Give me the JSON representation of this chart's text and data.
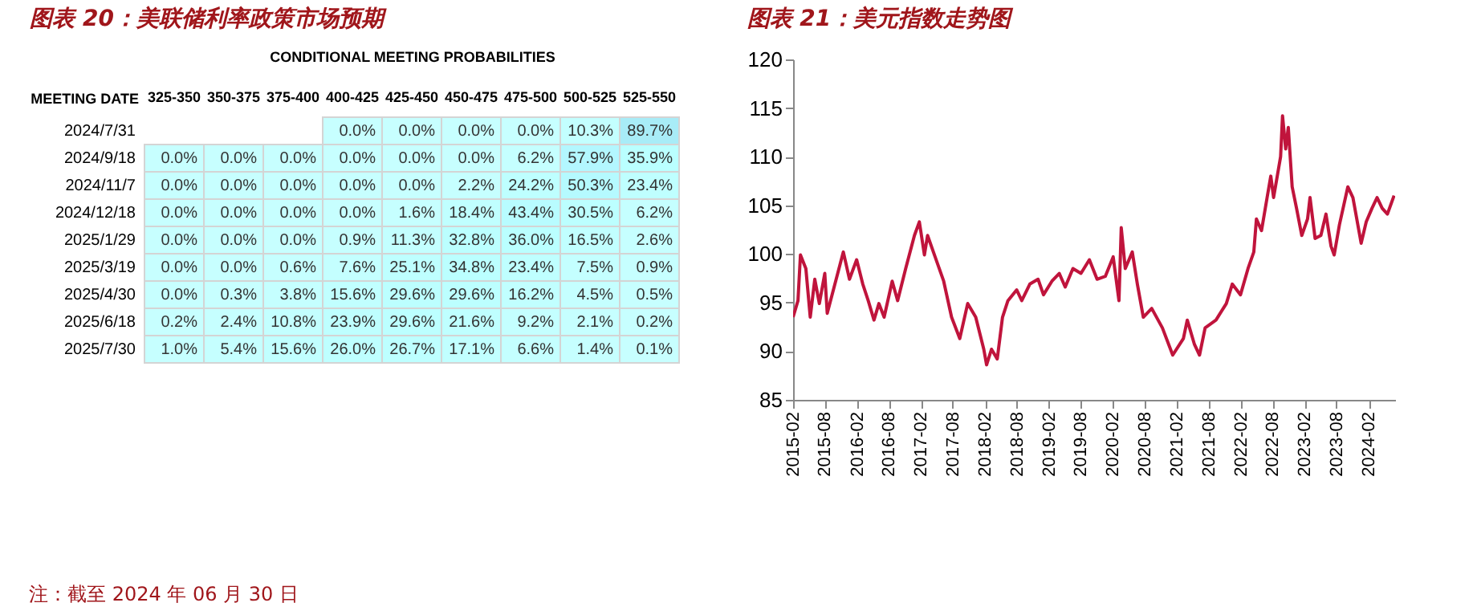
{
  "chart_data": [
    {
      "type": "heatmap",
      "title": "图表 20：美联储利率政策市场预期",
      "xlabel": "CONDITIONAL MEETING PROBABILITIES",
      "ylabel": "MEETING DATE",
      "categories": [
        "325-350",
        "350-375",
        "375-400",
        "400-425",
        "425-450",
        "450-475",
        "475-500",
        "500-525",
        "525-550"
      ],
      "y_categories": [
        "2024/7/31",
        "2024/9/18",
        "2024/11/7",
        "2024/12/18",
        "2025/1/29",
        "2025/3/19",
        "2025/4/30",
        "2025/6/18",
        "2025/7/30"
      ],
      "cells": [
        [
          null,
          null,
          null,
          0.0,
          0.0,
          0.0,
          0.0,
          10.3,
          89.7
        ],
        [
          0.0,
          0.0,
          0.0,
          0.0,
          0.0,
          0.0,
          6.2,
          57.9,
          35.9
        ],
        [
          0.0,
          0.0,
          0.0,
          0.0,
          0.0,
          2.2,
          24.2,
          50.3,
          23.4
        ],
        [
          0.0,
          0.0,
          0.0,
          0.0,
          1.6,
          18.4,
          43.4,
          30.5,
          6.2
        ],
        [
          0.0,
          0.0,
          0.0,
          0.9,
          11.3,
          32.8,
          36.0,
          16.5,
          2.6
        ],
        [
          0.0,
          0.0,
          0.6,
          7.6,
          25.1,
          34.8,
          23.4,
          7.5,
          0.9
        ],
        [
          0.0,
          0.3,
          3.8,
          15.6,
          29.6,
          29.6,
          16.2,
          4.5,
          0.5
        ],
        [
          0.2,
          2.4,
          10.8,
          23.9,
          29.6,
          21.6,
          9.2,
          2.1,
          0.2
        ],
        [
          1.0,
          5.4,
          15.6,
          26.0,
          26.7,
          17.1,
          6.6,
          1.4,
          0.1
        ]
      ],
      "cell_labels": [
        [
          null,
          null,
          null,
          "0.0%",
          "0.0%",
          "0.0%",
          "0.0%",
          "10.3%",
          "89.7%"
        ],
        [
          "0.0%",
          "0.0%",
          "0.0%",
          "0.0%",
          "0.0%",
          "0.0%",
          "6.2%",
          "57.9%",
          "35.9%"
        ],
        [
          "0.0%",
          "0.0%",
          "0.0%",
          "0.0%",
          "0.0%",
          "2.2%",
          "24.2%",
          "50.3%",
          "23.4%"
        ],
        [
          "0.0%",
          "0.0%",
          "0.0%",
          "0.0%",
          "1.6%",
          "18.4%",
          "43.4%",
          "30.5%",
          "6.2%"
        ],
        [
          "0.0%",
          "0.0%",
          "0.0%",
          "0.9%",
          "11.3%",
          "32.8%",
          "36.0%",
          "16.5%",
          "2.6%"
        ],
        [
          "0.0%",
          "0.0%",
          "0.6%",
          "7.6%",
          "25.1%",
          "34.8%",
          "23.4%",
          "7.5%",
          "0.9%"
        ],
        [
          "0.0%",
          "0.3%",
          "3.8%",
          "15.6%",
          "29.6%",
          "29.6%",
          "16.2%",
          "4.5%",
          "0.5%"
        ],
        [
          "0.2%",
          "2.4%",
          "10.8%",
          "23.9%",
          "29.6%",
          "21.6%",
          "9.2%",
          "2.1%",
          "0.2%"
        ],
        [
          "1.0%",
          "5.4%",
          "15.6%",
          "26.0%",
          "26.7%",
          "17.1%",
          "6.6%",
          "1.4%",
          "0.1%"
        ]
      ],
      "annotations": [
        "注：截至 2024 年 06 月 30 日"
      ]
    },
    {
      "type": "line",
      "title": "图表 21：美元指数走势图",
      "xlim": [
        "2015-02",
        "2024-07"
      ],
      "ylim": [
        85,
        120
      ],
      "yticks": [
        85,
        90,
        95,
        100,
        105,
        110,
        115,
        120
      ],
      "xticks": [
        "2015-02",
        "2015-08",
        "2016-02",
        "2016-08",
        "2017-02",
        "2017-08",
        "2018-02",
        "2018-08",
        "2019-02",
        "2019-08",
        "2020-02",
        "2020-08",
        "2021-02",
        "2021-08",
        "2022-02",
        "2022-08",
        "2023-02",
        "2023-08",
        "2024-02"
      ],
      "x": [
        "2015-02-01",
        "2015-03-01",
        "2015-03-15",
        "2015-04-15",
        "2015-05-10",
        "2015-06-05",
        "2015-07-01",
        "2015-08-01",
        "2015-08-15",
        "2015-11-15",
        "2015-12-20",
        "2016-01-30",
        "2016-03-05",
        "2016-04-05",
        "2016-05-08",
        "2016-06-05",
        "2016-07-05",
        "2016-08-20",
        "2016-09-20",
        "2016-11-05",
        "2016-12-25",
        "2017-01-22",
        "2017-02-20",
        "2017-03-10",
        "2017-04-22",
        "2017-06-10",
        "2017-07-25",
        "2017-09-10",
        "2017-10-25",
        "2017-12-10",
        "2018-01-25",
        "2018-02-10",
        "2018-03-10",
        "2018-04-12",
        "2018-05-12",
        "2018-06-12",
        "2018-08-01",
        "2018-08-30",
        "2018-10-15",
        "2018-12-01",
        "2019-01-01",
        "2019-02-18",
        "2019-04-01",
        "2019-05-05",
        "2019-06-18",
        "2019-08-03",
        "2019-09-20",
        "2019-11-03",
        "2019-12-20",
        "2020-02-03",
        "2020-03-07",
        "2020-03-20",
        "2020-04-12",
        "2020-05-22",
        "2020-06-20",
        "2020-07-24",
        "2020-09-10",
        "2020-11-10",
        "2021-01-08",
        "2021-03-10",
        "2021-04-01",
        "2021-05-12",
        "2021-06-10",
        "2021-07-12",
        "2021-09-12",
        "2021-11-10",
        "2021-12-14",
        "2022-01-30",
        "2022-03-14",
        "2022-04-16",
        "2022-05-01",
        "2022-05-30",
        "2022-07-01",
        "2022-07-22",
        "2022-08-07",
        "2022-09-16",
        "2022-09-27",
        "2022-10-15",
        "2022-10-30",
        "2022-11-21",
        "2022-12-16",
        "2023-01-15",
        "2023-02-17",
        "2023-03-03",
        "2023-04-01",
        "2023-05-04",
        "2023-06-02",
        "2023-07-01",
        "2023-07-19",
        "2023-08-18",
        "2023-10-05",
        "2023-11-03",
        "2023-12-20",
        "2024-01-18",
        "2024-02-20",
        "2024-03-20",
        "2024-04-18",
        "2024-05-18",
        "2024-06-25"
      ],
      "series": [
        {
          "color": "#c0143c",
          "values": [
            93.5,
            95.2,
            99.9,
            98.5,
            93.5,
            97.4,
            94.9,
            98,
            93.9,
            100.2,
            97.4,
            99.4,
            96.9,
            95.2,
            93.2,
            94.9,
            93.5,
            97.2,
            95.2,
            98.5,
            101.9,
            103.3,
            99.9,
            101.9,
            99.7,
            97.2,
            93.5,
            91.3,
            94.9,
            93.5,
            90.2,
            88.6,
            90.2,
            89.2,
            93.5,
            95.2,
            96.3,
            95.2,
            96.9,
            97.4,
            95.8,
            97.2,
            98,
            96.6,
            98.5,
            98,
            99.4,
            97.4,
            97.7,
            99.7,
            95.2,
            102.7,
            98.5,
            100.2,
            96.9,
            93.5,
            94.4,
            92.4,
            89.6,
            91.3,
            93.2,
            90.7,
            89.6,
            92.4,
            93.2,
            94.9,
            96.9,
            95.8,
            98.5,
            100.2,
            103.6,
            102.4,
            105.8,
            108,
            105.8,
            110,
            114.2,
            110.8,
            113,
            106.9,
            104.7,
            101.9,
            103.6,
            105.8,
            101.6,
            101.9,
            104.1,
            100.8,
            99.9,
            103,
            106.9,
            105.8,
            101.1,
            103.3,
            104.7,
            105.8,
            104.7,
            104.1,
            106
          ]
        }
      ]
    }
  ]
}
